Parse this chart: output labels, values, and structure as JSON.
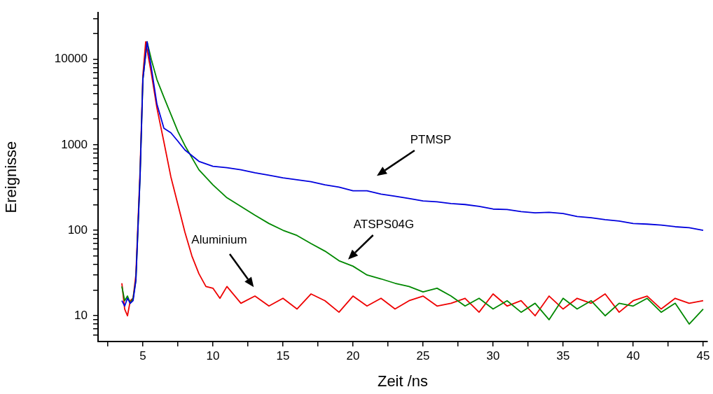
{
  "chart_data": {
    "type": "line",
    "xlabel": "Zeit /ns",
    "ylabel": "Ereignisse",
    "log": "y",
    "grid": false,
    "legend": false,
    "marker": "none",
    "line_style": "solid",
    "xlim": [
      1.8,
      45.3
    ],
    "xticks": [
      {
        "value": 2.5,
        "label": null
      },
      5,
      {
        "value": 7.5,
        "label": null
      },
      10,
      {
        "value": 12.5,
        "label": null
      },
      15,
      {
        "value": 17.5,
        "label": null
      },
      20,
      {
        "value": 22.5,
        "label": null
      },
      25,
      {
        "value": 27.5,
        "label": null
      },
      30,
      {
        "value": 32.5,
        "label": null
      },
      35,
      {
        "value": 37.5,
        "label": null
      },
      40,
      {
        "value": 42.5,
        "label": null
      },
      45
    ],
    "ylim": [
      5,
      35000
    ],
    "yticks": [
      {
        "value": 6,
        "label": null
      },
      {
        "value": 7,
        "label": null
      },
      {
        "value": 8,
        "label": null
      },
      {
        "value": 9,
        "label": null
      },
      10,
      {
        "value": 20,
        "label": null
      },
      {
        "value": 30,
        "label": null
      },
      {
        "value": 40,
        "label": null
      },
      {
        "value": 50,
        "label": null
      },
      {
        "value": 60,
        "label": null
      },
      {
        "value": 70,
        "label": null
      },
      {
        "value": 80,
        "label": null
      },
      {
        "value": 90,
        "label": null
      },
      100,
      {
        "value": 200,
        "label": null
      },
      {
        "value": 300,
        "label": null
      },
      {
        "value": 400,
        "label": null
      },
      {
        "value": 500,
        "label": null
      },
      {
        "value": 600,
        "label": null
      },
      {
        "value": 700,
        "label": null
      },
      {
        "value": 800,
        "label": null
      },
      {
        "value": 900,
        "label": null
      },
      1000,
      {
        "value": 2000,
        "label": null
      },
      {
        "value": 3000,
        "label": null
      },
      {
        "value": 4000,
        "label": null
      },
      {
        "value": 5000,
        "label": null
      },
      {
        "value": 6000,
        "label": null
      },
      {
        "value": 7000,
        "label": null
      },
      {
        "value": 8000,
        "label": null
      },
      {
        "value": 9000,
        "label": null
      },
      10000,
      {
        "value": 20000,
        "label": null
      },
      {
        "value": 30000,
        "label": null
      }
    ],
    "series": [
      {
        "color": "#0000dd",
        "x": [
          3.5,
          3.7,
          3.9,
          4.1,
          4.3,
          4.5,
          4.8,
          5.0,
          5.3,
          5.6,
          6.0,
          6.5,
          7.0,
          7.5,
          8.0,
          9.0,
          10.0,
          11.0,
          12.0,
          13.0,
          14.0,
          15.0,
          16.0,
          17.0,
          18.0,
          19.0,
          20.0,
          21.0,
          22.0,
          23.0,
          24.0,
          25.0,
          26.0,
          27.0,
          28.0,
          29.0,
          30.0,
          31.0,
          32.0,
          33.0,
          34.0,
          35.0,
          36.0,
          37.0,
          38.0,
          39.0,
          40.0,
          41.0,
          42.0,
          43.0,
          44.0,
          45.0
        ],
        "values": [
          15,
          13,
          16,
          14,
          15,
          26,
          430,
          5800,
          16000,
          8000,
          3000,
          1560,
          1380,
          1100,
          870,
          640,
          560,
          540,
          510,
          470,
          440,
          410,
          390,
          370,
          340,
          320,
          290,
          290,
          265,
          250,
          235,
          220,
          215,
          205,
          200,
          190,
          177,
          175,
          165,
          160,
          162,
          157,
          145,
          140,
          133,
          128,
          120,
          118,
          115,
          110,
          107,
          100
        ]
      },
      {
        "color": "#008800",
        "x": [
          3.5,
          3.7,
          3.9,
          4.1,
          4.3,
          4.5,
          4.8,
          5.0,
          5.3,
          5.6,
          6.0,
          6.5,
          7.0,
          7.5,
          8.0,
          9.0,
          10.0,
          11.0,
          12.0,
          13.0,
          14.0,
          15.0,
          16.0,
          17.0,
          18.0,
          19.0,
          20.0,
          21.0,
          22.0,
          23.0,
          24.0,
          25.0,
          26.0,
          27.0,
          28.0,
          29.0,
          30.0,
          31.0,
          32.0,
          33.0,
          34.0,
          35.0,
          36.0,
          37.0,
          38.0,
          39.0,
          40.0,
          41.0,
          42.0,
          43.0,
          44.0,
          45.0
        ],
        "values": [
          22,
          15,
          17,
          14,
          16,
          26,
          430,
          5800,
          16000,
          10000,
          5800,
          3600,
          2270,
          1430,
          980,
          510,
          340,
          240,
          190,
          150,
          120,
          100,
          87,
          70,
          57,
          44,
          38,
          30,
          27,
          24,
          22,
          19,
          21,
          17,
          13,
          16,
          12,
          15,
          11,
          14,
          9,
          16,
          12,
          15,
          10,
          14,
          13,
          16,
          11,
          14,
          8,
          12
        ]
      },
      {
        "color": "#ee0000",
        "x": [
          3.5,
          3.7,
          3.9,
          4.1,
          4.3,
          4.5,
          4.8,
          5.0,
          5.2,
          5.6,
          6.0,
          6.5,
          7.0,
          7.5,
          8.0,
          8.5,
          9.0,
          9.5,
          10.0,
          10.5,
          11.0,
          12.0,
          13.0,
          14.0,
          15.0,
          16.0,
          17.0,
          18.0,
          19.0,
          20.0,
          21.0,
          22.0,
          23.0,
          24.0,
          25.0,
          26.0,
          27.0,
          28.0,
          29.0,
          30.0,
          31.0,
          32.0,
          33.0,
          34.0,
          35.0,
          36.0,
          37.0,
          38.0,
          39.0,
          40.0,
          41.0,
          42.0,
          43.0,
          44.0,
          45.0
        ],
        "values": [
          24,
          12,
          10,
          15,
          16,
          30,
          500,
          6500,
          16000,
          6900,
          2700,
          1080,
          420,
          200,
          95,
          50,
          31,
          22,
          21,
          16,
          22,
          14,
          17,
          13,
          16,
          12,
          18,
          15,
          11,
          17,
          13,
          16,
          12,
          15,
          17,
          13,
          14,
          16,
          11,
          18,
          13,
          15,
          10,
          17,
          12,
          16,
          14,
          18,
          11,
          15,
          17,
          12,
          16,
          14,
          15
        ]
      }
    ],
    "annotations": [
      "PTMSP",
      "ATSPS04G",
      "Aluminium"
    ]
  }
}
